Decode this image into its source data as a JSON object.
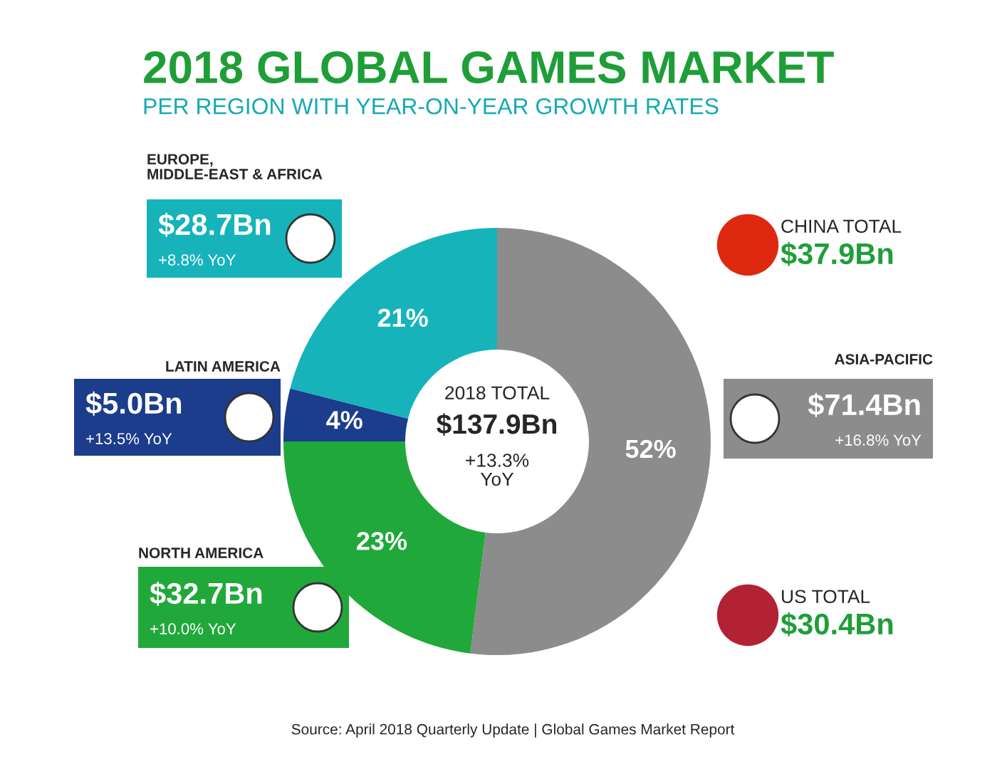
{
  "chart_data": {
    "type": "donut",
    "title": "2018 GLOBAL GAMES MARKET",
    "subtitle": "PER REGION WITH YEAR-ON-YEAR GROWTH RATES",
    "categories": [
      "ASIA-PACIFIC",
      "NORTH AMERICA",
      "LATIN AMERICA",
      "EUROPE,\nMIDDLE-EAST & AFRICA"
    ],
    "values": [
      52,
      23,
      4,
      21
    ],
    "colors": [
      "#8c8c8c",
      "#21a83a",
      "#1b3d8c",
      "#16b3bb"
    ],
    "value_labels": [
      "52%",
      "23%",
      "4%",
      "21%"
    ],
    "annotations": [
      "2018 TOTAL",
      "$137.9Bn",
      "+13.3%\nYoY",
      "$71.4Bn",
      "+16.8% YoY",
      "$32.7Bn",
      "+10.0% YoY",
      "$5.0Bn",
      "+13.5% YoY",
      "$28.7Bn",
      "+8.8% YoY",
      "CHINA TOTAL",
      "$37.9Bn",
      "US TOTAL",
      "$30.4Bn",
      "Source: April 2018 Quarterly Update | Global Games Market Report"
    ]
  }
}
